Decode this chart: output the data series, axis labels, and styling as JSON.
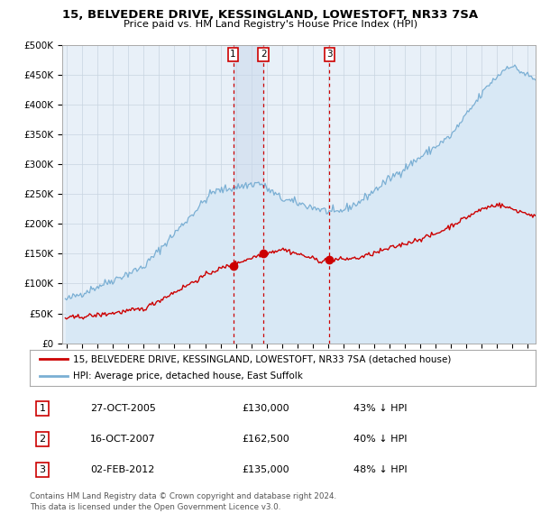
{
  "title": "15, BELVEDERE DRIVE, KESSINGLAND, LOWESTOFT, NR33 7SA",
  "subtitle": "Price paid vs. HM Land Registry's House Price Index (HPI)",
  "legend_line1": "15, BELVEDERE DRIVE, KESSINGLAND, LOWESTOFT, NR33 7SA (detached house)",
  "legend_line2": "HPI: Average price, detached house, East Suffolk",
  "footer1": "Contains HM Land Registry data © Crown copyright and database right 2024.",
  "footer2": "This data is licensed under the Open Government Licence v3.0.",
  "transactions": [
    {
      "num": 1,
      "date": "27-OCT-2005",
      "price": 130000,
      "pct": "43% ↓ HPI",
      "year": 2005.82
    },
    {
      "num": 2,
      "date": "16-OCT-2007",
      "price": 162500,
      "pct": "40% ↓ HPI",
      "year": 2007.79
    },
    {
      "num": 3,
      "date": "02-FEB-2012",
      "price": 135000,
      "pct": "48% ↓ HPI",
      "year": 2012.09
    }
  ],
  "hpi_line_color": "#7aafd4",
  "hpi_fill_color": "#d8e8f5",
  "price_color": "#cc0000",
  "bg_color": "#e8f0f8",
  "grid_color": "#c8d4e0",
  "dashed_line_color": "#cc0000",
  "shade_color": "#c8d8ec",
  "ylim": [
    0,
    500000
  ],
  "yticks": [
    0,
    50000,
    100000,
    150000,
    200000,
    250000,
    300000,
    350000,
    400000,
    450000,
    500000
  ],
  "xmin": 1994.7,
  "xmax": 2025.5
}
